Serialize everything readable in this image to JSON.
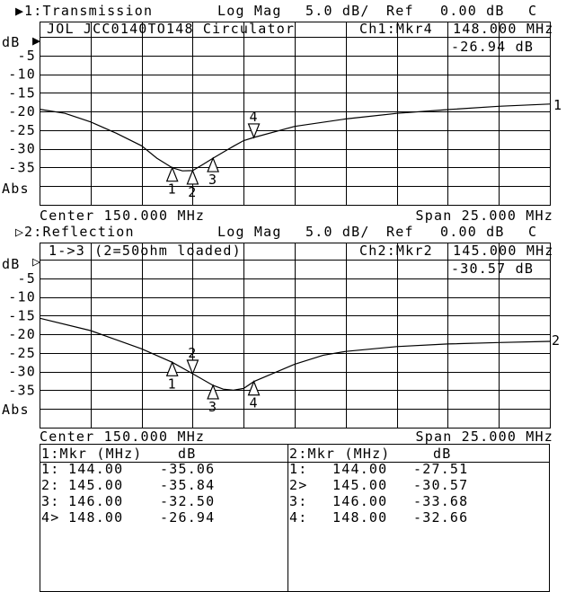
{
  "colors": {
    "background": "#ffffff",
    "foreground": "#000000"
  },
  "chart_data": [
    {
      "type": "line",
      "channel_label": "1:Transmission",
      "active_indicator": "▶",
      "format": "Log Mag",
      "scale": "5.0 dB/",
      "ref_label": "Ref",
      "ref_value": "0.00 dB",
      "flag": "C",
      "title": "JOL JCC0140TO148 Circulator",
      "marker_readout": {
        "label": "Ch1:Mkr4",
        "freq": "148.000 MHz",
        "value": "-26.94 dB"
      },
      "ylabel": "dB",
      "ylabel_bottom": "Abs",
      "yticks": [
        "-5",
        "-10",
        "-15",
        "-20",
        "-25",
        "-30",
        "-35"
      ],
      "ylim": [
        -45,
        0
      ],
      "xlim": [
        137.5,
        162.5
      ],
      "grid": true,
      "center_label": "Center 150.000 MHz",
      "span_label": "Span 25.000 MHz",
      "trace_label": "1",
      "series": [
        {
          "x": [
            137.5,
            138.75,
            140,
            141.25,
            142.5,
            143.25,
            144,
            144.5,
            145,
            145.5,
            146,
            147,
            147.5,
            148,
            150,
            152.5,
            155,
            157.5,
            160,
            162.5
          ],
          "y": [
            -19.4,
            -20.5,
            -22.8,
            -25.8,
            -29.2,
            -32.5,
            -35.06,
            -35.9,
            -35.84,
            -34.2,
            -32.5,
            -29.3,
            -27.8,
            -26.94,
            -24,
            -22,
            -20.5,
            -19.5,
            -18.6,
            -18
          ]
        }
      ],
      "markers": [
        {
          "label": "1",
          "x": 144,
          "y": -35.06,
          "active": false
        },
        {
          "label": "2",
          "x": 145,
          "y": -35.84,
          "active": false
        },
        {
          "label": "3",
          "x": 146,
          "y": -32.5,
          "active": false
        },
        {
          "label": "4",
          "x": 148,
          "y": -26.94,
          "active": true
        }
      ]
    },
    {
      "type": "line",
      "channel_label": "2:Reflection",
      "active_indicator": "▷",
      "format": "Log Mag",
      "scale": "5.0 dB/",
      "ref_label": "Ref",
      "ref_value": "0.00 dB",
      "flag": "C",
      "title": "1->3 (2=50ohm loaded)",
      "marker_readout": {
        "label": "Ch2:Mkr2",
        "freq": "145.000 MHz",
        "value": "-30.57 dB"
      },
      "ylabel": "dB",
      "ylabel_bottom": "Abs",
      "yticks": [
        "-5",
        "-10",
        "-15",
        "-20",
        "-25",
        "-30",
        "-35"
      ],
      "ylim": [
        -45,
        0
      ],
      "xlim": [
        137.5,
        162.5
      ],
      "grid": true,
      "center_label": "Center 150.000 MHz",
      "span_label": "Span 25.000 MHz",
      "trace_label": "2",
      "series": [
        {
          "x": [
            137.5,
            140,
            142.5,
            144,
            145,
            146,
            146.5,
            147,
            147.5,
            148,
            150,
            151.4,
            152.5,
            155,
            157.5,
            160,
            162.5
          ],
          "y": [
            -15.7,
            -19,
            -23.9,
            -27.51,
            -30.57,
            -33.68,
            -34.7,
            -35,
            -34.5,
            -32.66,
            -28,
            -25.6,
            -24.6,
            -23.3,
            -22.6,
            -22.2,
            -21.9
          ]
        }
      ],
      "markers": [
        {
          "label": "1",
          "x": 144,
          "y": -27.51,
          "active": false
        },
        {
          "label": "2",
          "x": 145,
          "y": -30.57,
          "active": true
        },
        {
          "label": "3",
          "x": 146,
          "y": -33.68,
          "active": false
        },
        {
          "label": "4",
          "x": 148,
          "y": -32.66,
          "active": false
        }
      ]
    }
  ],
  "marker_table": [
    {
      "header_mkr": "1:Mkr (MHz)",
      "header_db": "dB",
      "rows": [
        {
          "idx": "1:",
          "freq": "144.00",
          "db": "-35.06"
        },
        {
          "idx": "2:",
          "freq": "145.00",
          "db": "-35.84"
        },
        {
          "idx": "3:",
          "freq": "146.00",
          "db": "-32.50"
        },
        {
          "idx": "4>",
          "freq": "148.00",
          "db": "-26.94"
        }
      ]
    },
    {
      "header_mkr": "2:Mkr (MHz)",
      "header_db": "dB",
      "rows": [
        {
          "idx": "1:",
          "freq": "144.00",
          "db": "-27.51"
        },
        {
          "idx": "2>",
          "freq": "145.00",
          "db": "-30.57"
        },
        {
          "idx": "3:",
          "freq": "146.00",
          "db": "-33.68"
        },
        {
          "idx": "4:",
          "freq": "148.00",
          "db": "-32.66"
        }
      ]
    }
  ]
}
